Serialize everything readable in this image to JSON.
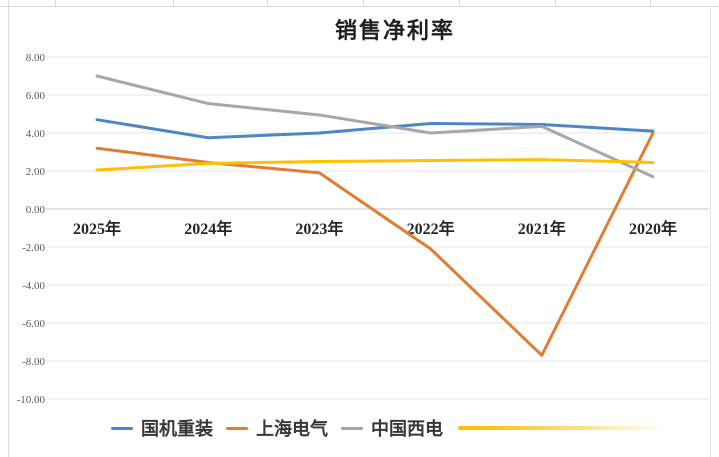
{
  "chart_data": {
    "type": "line",
    "title": "销售净利率",
    "categories": [
      "2025年",
      "2024年",
      "2023年",
      "2022年",
      "2021年",
      "2020年"
    ],
    "series": [
      {
        "name": "国机重装",
        "color": "#4e86c4",
        "values": [
          4.7,
          3.75,
          4.0,
          4.5,
          4.45,
          4.1
        ]
      },
      {
        "name": "上海电气",
        "color": "#e17d33",
        "values": [
          3.2,
          2.45,
          1.9,
          -2.1,
          -7.7,
          4.0
        ]
      },
      {
        "name": "中国西电",
        "color": "#a7a7a7",
        "values": [
          7.0,
          5.55,
          4.95,
          4.0,
          4.35,
          1.7
        ]
      },
      {
        "name": "",
        "color": "#ffc000",
        "values": [
          2.05,
          2.4,
          2.5,
          2.55,
          2.6,
          2.45
        ],
        "legend_fade": true
      }
    ],
    "ylim": [
      -10,
      8
    ],
    "y_tick_step": 2,
    "y_tick_labels": [
      "8.00",
      "6.00",
      "4.00",
      "2.00",
      "0.00",
      "-2.00",
      "-4.00",
      "-6.00",
      "-8.00",
      "-10.00"
    ],
    "grid": true,
    "legend_position": "bottom",
    "axis_color": "#c6c6c6",
    "grid_color": "#e4e4e4"
  }
}
